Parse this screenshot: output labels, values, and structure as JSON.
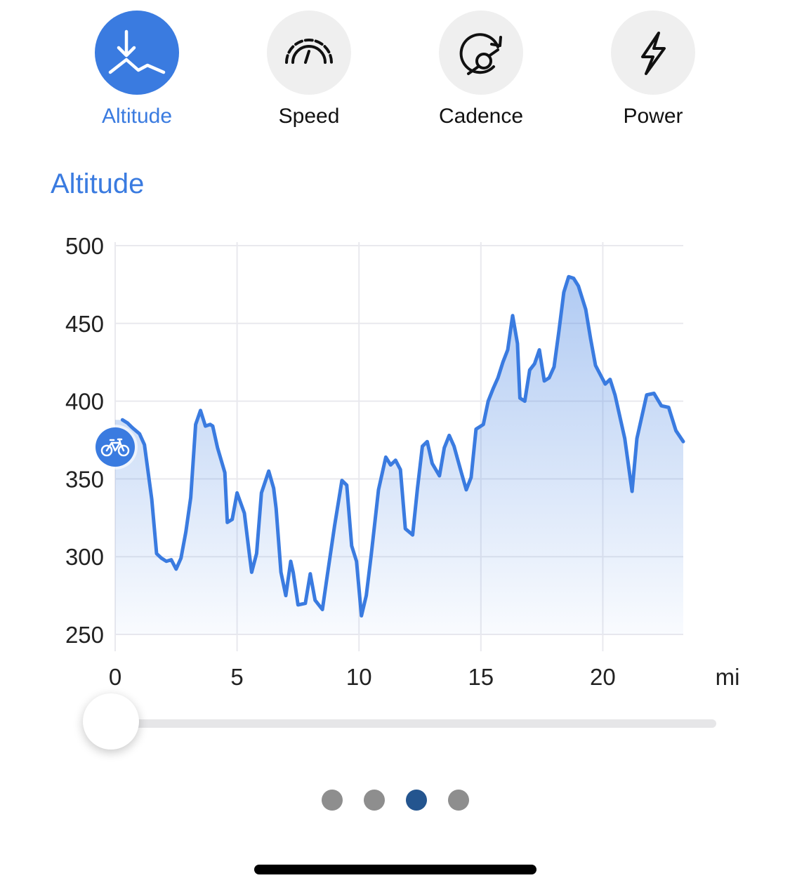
{
  "tabs": [
    {
      "label": "Altitude",
      "icon": "altitude-icon",
      "active": true
    },
    {
      "label": "Speed",
      "icon": "speedometer-icon",
      "active": false
    },
    {
      "label": "Cadence",
      "icon": "cadence-icon",
      "active": false
    },
    {
      "label": "Power",
      "icon": "lightning-bolt-icon",
      "active": false
    }
  ],
  "section_title": "Altitude",
  "colors": {
    "accent": "#3a7be0",
    "inactive_circle": "#efefef",
    "active_dot": "#24558f",
    "inactive_dot": "#8e8e8e"
  },
  "chart_data": {
    "type": "area",
    "title": "",
    "xlabel": "",
    "ylabel": "",
    "x_unit": "mi",
    "xlim": [
      0,
      23.3
    ],
    "ylim": [
      250,
      500
    ],
    "x_ticks": [
      "0",
      "5",
      "10",
      "15",
      "20"
    ],
    "y_ticks": [
      "250",
      "300",
      "350",
      "400",
      "450",
      "500"
    ],
    "grid": true,
    "marker_icon": "bicycle-icon",
    "series": [
      {
        "x": [
          0.3,
          0.5,
          0.7,
          1.0,
          1.2,
          1.5,
          1.7,
          1.9,
          2.1,
          2.3,
          2.5,
          2.7,
          2.9,
          3.1,
          3.3,
          3.5,
          3.7,
          3.9,
          4.0,
          4.2,
          4.5,
          4.6,
          4.8,
          5.0,
          5.3,
          5.5,
          5.6,
          5.8,
          6.0,
          6.3,
          6.5,
          6.6,
          6.8,
          7.0,
          7.2,
          7.3,
          7.5,
          7.8,
          8.0,
          8.2,
          8.5,
          8.7,
          9.0,
          9.3,
          9.5,
          9.7,
          9.9,
          10.1,
          10.3,
          10.5,
          10.8,
          11.1,
          11.3,
          11.5,
          11.7,
          11.9,
          12.2,
          12.4,
          12.6,
          12.8,
          13.0,
          13.3,
          13.5,
          13.7,
          13.9,
          14.2,
          14.4,
          14.6,
          14.8,
          15.1,
          15.3,
          15.5,
          15.7,
          15.9,
          16.1,
          16.3,
          16.5,
          16.6,
          16.8,
          17.0,
          17.2,
          17.4,
          17.6,
          17.8,
          18.0,
          18.2,
          18.4,
          18.6,
          18.8,
          19.0,
          19.3,
          19.5,
          19.7,
          19.9,
          20.1,
          20.3,
          20.5,
          20.9,
          21.2,
          21.4,
          21.8,
          22.1,
          22.4,
          22.7,
          23.0,
          23.3
        ],
        "y": [
          388,
          386,
          383,
          379,
          372,
          337,
          302,
          299,
          297,
          298,
          292,
          299,
          316,
          338,
          385,
          394,
          384,
          385,
          384,
          370,
          354,
          322,
          324,
          341,
          328,
          302,
          290,
          302,
          341,
          355,
          344,
          331,
          290,
          275,
          297,
          290,
          269,
          270,
          289,
          272,
          266,
          288,
          320,
          349,
          346,
          307,
          297,
          262,
          275,
          301,
          343,
          364,
          359,
          362,
          356,
          318,
          314,
          344,
          371,
          374,
          360,
          352,
          370,
          378,
          371,
          354,
          343,
          351,
          382,
          385,
          400,
          408,
          415,
          425,
          433,
          455,
          437,
          402,
          400,
          420,
          424,
          433,
          413,
          415,
          422,
          445,
          470,
          480,
          479,
          474,
          459,
          440,
          423,
          417,
          411,
          414,
          404,
          376,
          342,
          376,
          404,
          405,
          397,
          396,
          381,
          374
        ]
      }
    ]
  },
  "slider": {
    "value": 0
  },
  "pager": {
    "count": 4,
    "active_index": 2
  }
}
